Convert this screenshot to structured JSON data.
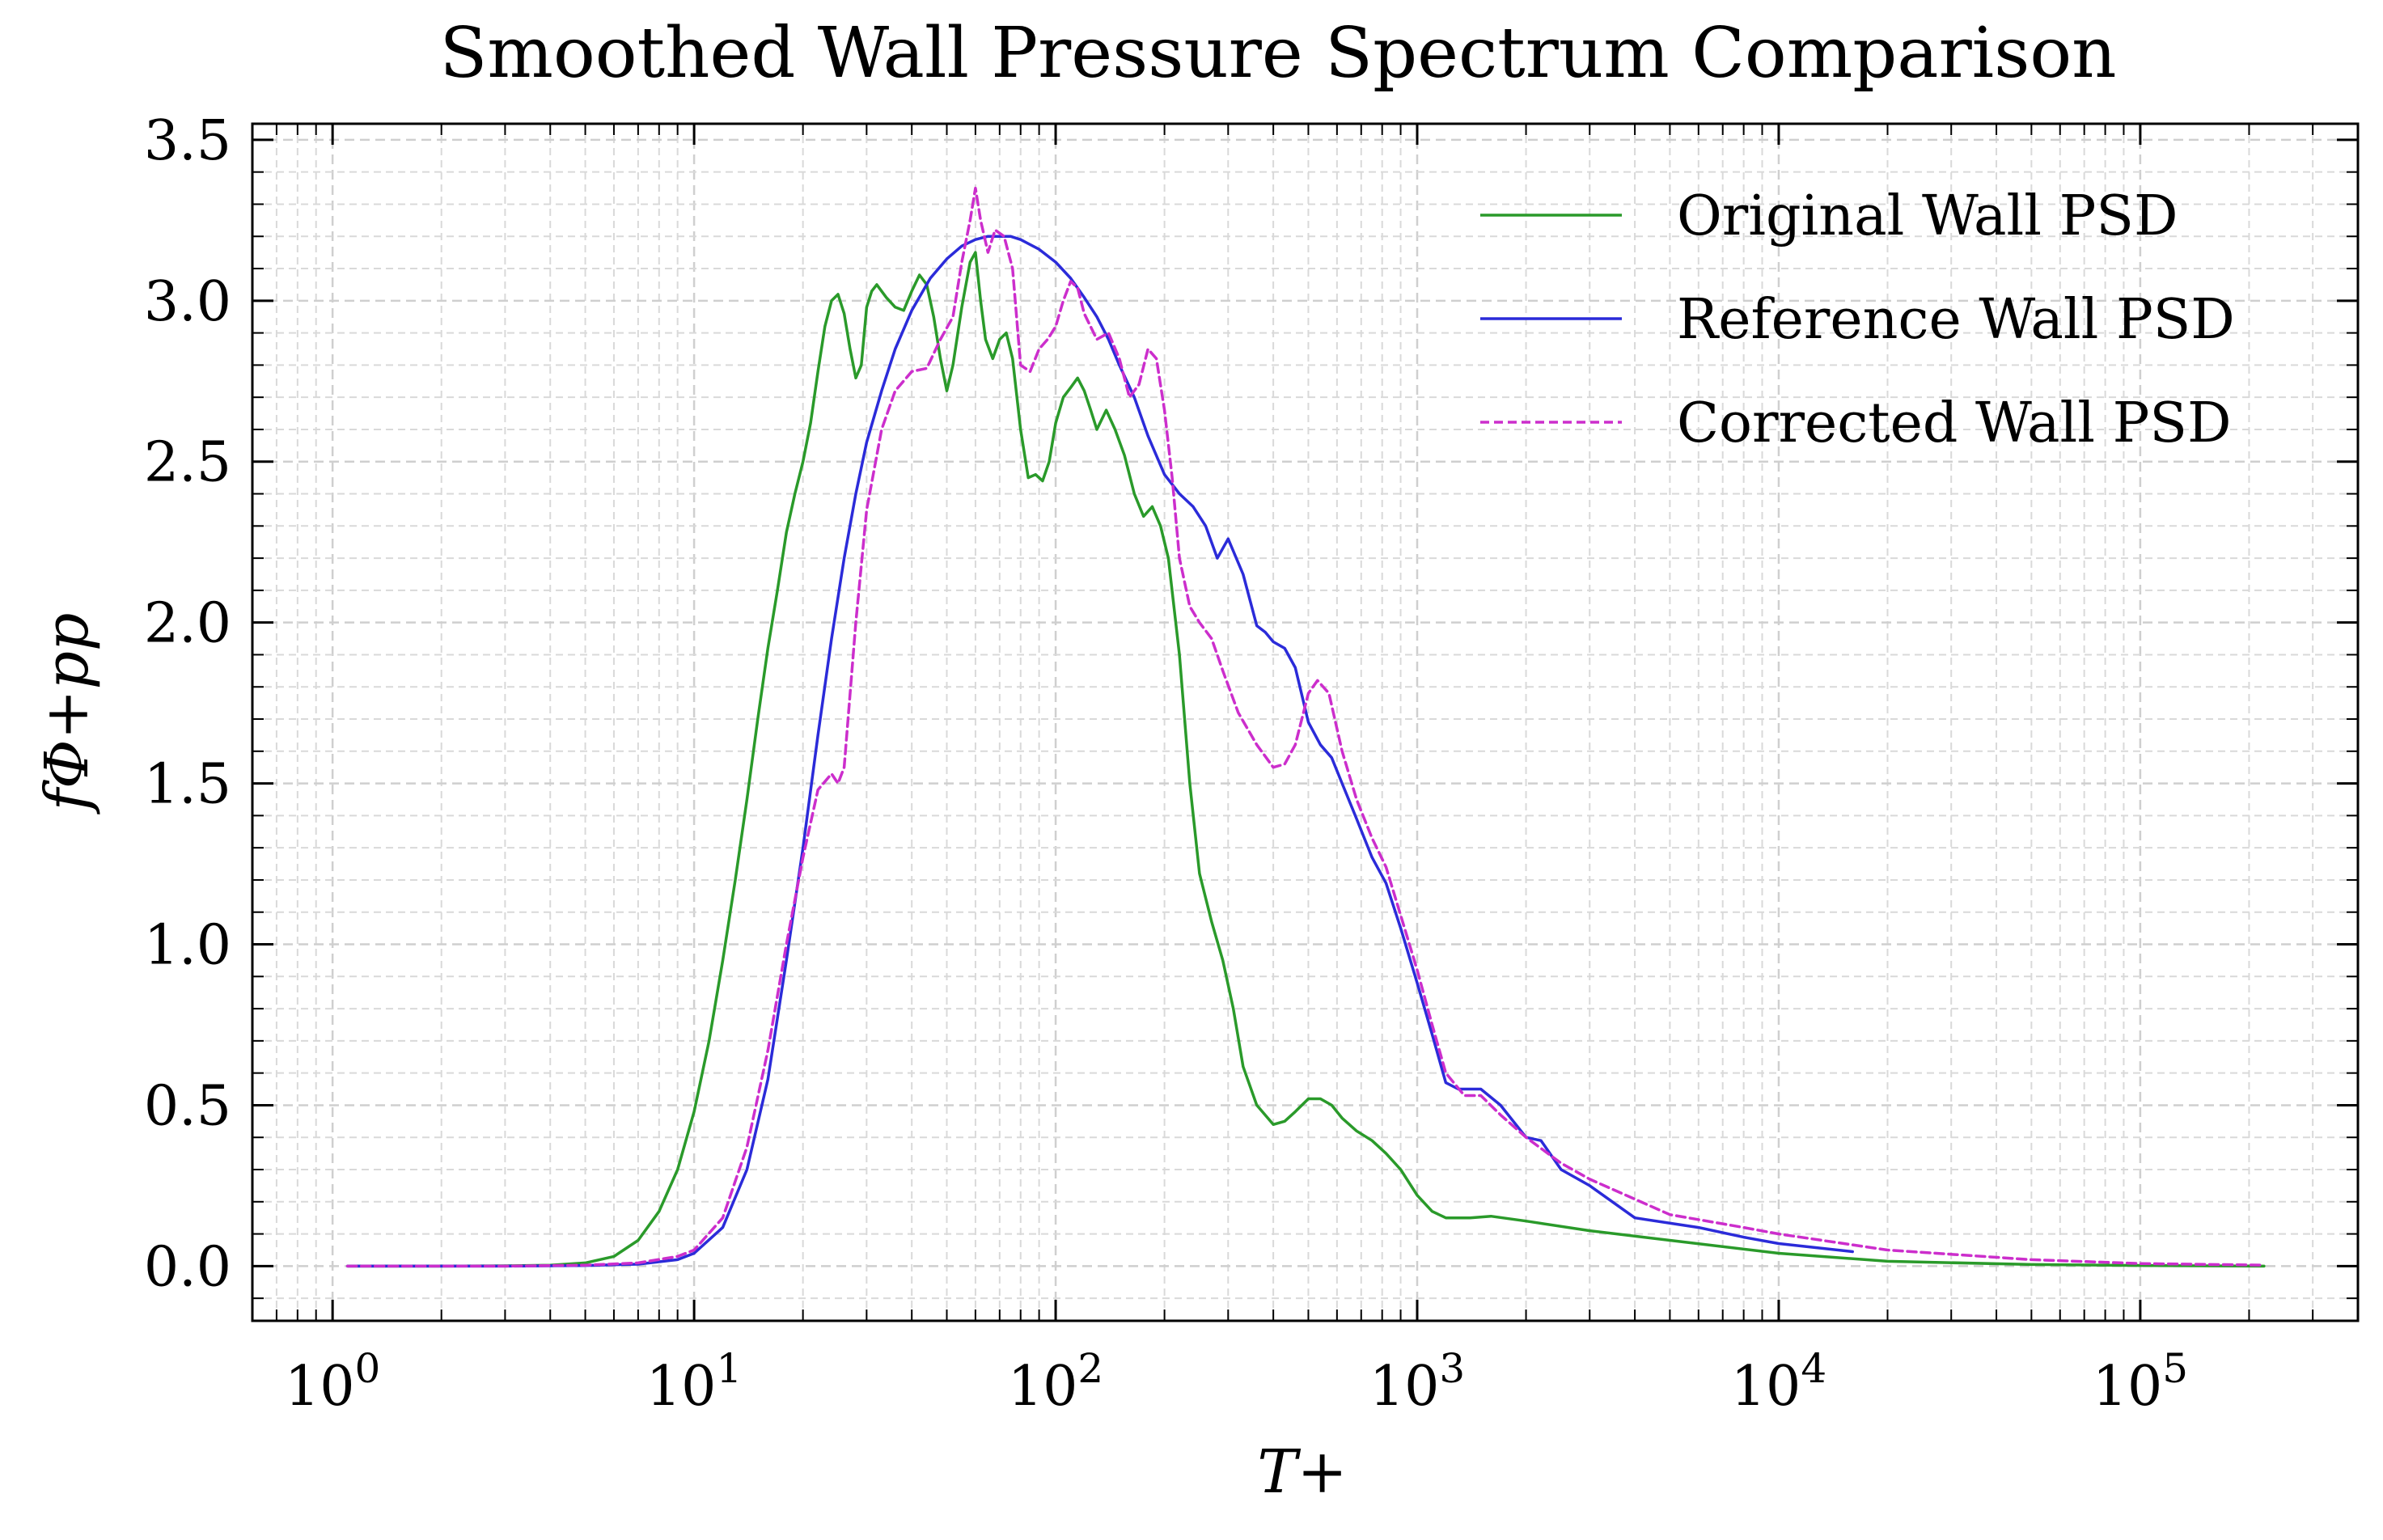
{
  "chart_data": {
    "type": "line",
    "title": "Smoothed Wall Pressure Spectrum Comparison",
    "xlabel": "T+",
    "ylabel": "fΦ+pp",
    "xscale": "log",
    "xlim": [
      0.6,
      400000
    ],
    "ylim": [
      -0.17,
      3.55
    ],
    "x_major_ticks": [
      1,
      10,
      100,
      1000,
      10000,
      100000
    ],
    "x_tick_labels": [
      {
        "base": "10",
        "exp": "0"
      },
      {
        "base": "10",
        "exp": "1"
      },
      {
        "base": "10",
        "exp": "2"
      },
      {
        "base": "10",
        "exp": "3"
      },
      {
        "base": "10",
        "exp": "4"
      },
      {
        "base": "10",
        "exp": "5"
      }
    ],
    "y_major_ticks": [
      0.0,
      0.5,
      1.0,
      1.5,
      2.0,
      2.5,
      3.0,
      3.5
    ],
    "y_tick_labels": [
      "0.0",
      "0.5",
      "1.0",
      "1.5",
      "2.0",
      "2.5",
      "3.0",
      "3.5"
    ],
    "grid": true,
    "legend_position": "top-right",
    "series": [
      {
        "name": "Original Wall PSD",
        "color": "#2a9a2a",
        "dash": "solid",
        "points": [
          [
            1.1,
            0.0
          ],
          [
            2,
            0.0
          ],
          [
            3,
            0.001
          ],
          [
            4,
            0.003
          ],
          [
            5,
            0.01
          ],
          [
            6,
            0.03
          ],
          [
            7,
            0.08
          ],
          [
            8,
            0.17
          ],
          [
            9,
            0.3
          ],
          [
            10,
            0.48
          ],
          [
            11,
            0.7
          ],
          [
            12,
            0.95
          ],
          [
            13,
            1.2
          ],
          [
            14,
            1.45
          ],
          [
            15,
            1.7
          ],
          [
            16,
            1.92
          ],
          [
            17,
            2.1
          ],
          [
            18,
            2.28
          ],
          [
            19,
            2.4
          ],
          [
            20,
            2.5
          ],
          [
            21,
            2.62
          ],
          [
            22,
            2.78
          ],
          [
            23,
            2.92
          ],
          [
            24,
            3.0
          ],
          [
            25,
            3.02
          ],
          [
            26,
            2.96
          ],
          [
            27,
            2.85
          ],
          [
            28,
            2.76
          ],
          [
            29,
            2.8
          ],
          [
            30,
            2.98
          ],
          [
            31,
            3.03
          ],
          [
            32,
            3.05
          ],
          [
            34,
            3.01
          ],
          [
            36,
            2.98
          ],
          [
            38,
            2.97
          ],
          [
            40,
            3.03
          ],
          [
            42,
            3.08
          ],
          [
            44,
            3.05
          ],
          [
            46,
            2.95
          ],
          [
            48,
            2.82
          ],
          [
            50,
            2.72
          ],
          [
            52,
            2.8
          ],
          [
            55,
            2.98
          ],
          [
            58,
            3.12
          ],
          [
            60,
            3.15
          ],
          [
            62,
            3.0
          ],
          [
            64,
            2.88
          ],
          [
            67,
            2.82
          ],
          [
            70,
            2.88
          ],
          [
            73,
            2.9
          ],
          [
            76,
            2.82
          ],
          [
            80,
            2.6
          ],
          [
            84,
            2.45
          ],
          [
            88,
            2.46
          ],
          [
            92,
            2.44
          ],
          [
            96,
            2.5
          ],
          [
            100,
            2.62
          ],
          [
            105,
            2.7
          ],
          [
            110,
            2.73
          ],
          [
            115,
            2.76
          ],
          [
            120,
            2.72
          ],
          [
            125,
            2.66
          ],
          [
            130,
            2.6
          ],
          [
            138,
            2.66
          ],
          [
            146,
            2.6
          ],
          [
            155,
            2.52
          ],
          [
            165,
            2.4
          ],
          [
            175,
            2.33
          ],
          [
            185,
            2.36
          ],
          [
            195,
            2.3
          ],
          [
            205,
            2.2
          ],
          [
            220,
            1.9
          ],
          [
            235,
            1.5
          ],
          [
            250,
            1.22
          ],
          [
            270,
            1.07
          ],
          [
            290,
            0.95
          ],
          [
            310,
            0.8
          ],
          [
            330,
            0.62
          ],
          [
            360,
            0.5
          ],
          [
            400,
            0.44
          ],
          [
            430,
            0.45
          ],
          [
            460,
            0.48
          ],
          [
            500,
            0.52
          ],
          [
            540,
            0.52
          ],
          [
            580,
            0.5
          ],
          [
            620,
            0.46
          ],
          [
            680,
            0.42
          ],
          [
            750,
            0.39
          ],
          [
            820,
            0.35
          ],
          [
            900,
            0.3
          ],
          [
            1000,
            0.22
          ],
          [
            1100,
            0.17
          ],
          [
            1200,
            0.15
          ],
          [
            1400,
            0.15
          ],
          [
            1600,
            0.155
          ],
          [
            2000,
            0.14
          ],
          [
            3000,
            0.11
          ],
          [
            5000,
            0.08
          ],
          [
            10000,
            0.04
          ],
          [
            20000,
            0.015
          ],
          [
            50000,
            0.005
          ],
          [
            100000,
            0.002
          ],
          [
            220000,
            0.0
          ]
        ]
      },
      {
        "name": "Reference Wall PSD",
        "color": "#2b2bd9",
        "dash": "solid",
        "points": [
          [
            1.1,
            0.0
          ],
          [
            3,
            0.0
          ],
          [
            5,
            0.002
          ],
          [
            7,
            0.006
          ],
          [
            9,
            0.02
          ],
          [
            10,
            0.04
          ],
          [
            12,
            0.12
          ],
          [
            14,
            0.3
          ],
          [
            16,
            0.58
          ],
          [
            18,
            0.95
          ],
          [
            20,
            1.3
          ],
          [
            22,
            1.65
          ],
          [
            24,
            1.95
          ],
          [
            26,
            2.2
          ],
          [
            28,
            2.4
          ],
          [
            30,
            2.56
          ],
          [
            33,
            2.72
          ],
          [
            36,
            2.85
          ],
          [
            40,
            2.97
          ],
          [
            45,
            3.07
          ],
          [
            50,
            3.13
          ],
          [
            55,
            3.17
          ],
          [
            60,
            3.19
          ],
          [
            65,
            3.2
          ],
          [
            70,
            3.2
          ],
          [
            75,
            3.2
          ],
          [
            80,
            3.19
          ],
          [
            90,
            3.16
          ],
          [
            100,
            3.12
          ],
          [
            110,
            3.07
          ],
          [
            120,
            3.01
          ],
          [
            130,
            2.95
          ],
          [
            140,
            2.88
          ],
          [
            150,
            2.8
          ],
          [
            165,
            2.7
          ],
          [
            180,
            2.58
          ],
          [
            200,
            2.46
          ],
          [
            220,
            2.4
          ],
          [
            240,
            2.36
          ],
          [
            260,
            2.3
          ],
          [
            280,
            2.2
          ],
          [
            300,
            2.26
          ],
          [
            330,
            2.15
          ],
          [
            360,
            1.99
          ],
          [
            380,
            1.97
          ],
          [
            400,
            1.94
          ],
          [
            430,
            1.92
          ],
          [
            460,
            1.86
          ],
          [
            500,
            1.69
          ],
          [
            540,
            1.62
          ],
          [
            580,
            1.58
          ],
          [
            620,
            1.5
          ],
          [
            680,
            1.39
          ],
          [
            750,
            1.27
          ],
          [
            820,
            1.19
          ],
          [
            900,
            1.05
          ],
          [
            1000,
            0.88
          ],
          [
            1100,
            0.72
          ],
          [
            1200,
            0.57
          ],
          [
            1300,
            0.55
          ],
          [
            1500,
            0.55
          ],
          [
            1700,
            0.5
          ],
          [
            2000,
            0.4
          ],
          [
            2200,
            0.39
          ],
          [
            2500,
            0.3
          ],
          [
            3000,
            0.25
          ],
          [
            4000,
            0.15
          ],
          [
            6000,
            0.12
          ],
          [
            8000,
            0.09
          ],
          [
            10000,
            0.07
          ],
          [
            16000,
            0.045
          ]
        ]
      },
      {
        "name": "Corrected Wall PSD",
        "color": "#cc2ecc",
        "dash": "dashed",
        "points": [
          [
            1.1,
            0.0
          ],
          [
            3,
            0.0
          ],
          [
            5,
            0.003
          ],
          [
            7,
            0.01
          ],
          [
            9,
            0.03
          ],
          [
            10,
            0.05
          ],
          [
            12,
            0.15
          ],
          [
            14,
            0.37
          ],
          [
            16,
            0.67
          ],
          [
            18,
            1.0
          ],
          [
            20,
            1.27
          ],
          [
            22,
            1.48
          ],
          [
            24,
            1.53
          ],
          [
            25,
            1.5
          ],
          [
            26,
            1.55
          ],
          [
            28,
            2.0
          ],
          [
            30,
            2.35
          ],
          [
            33,
            2.6
          ],
          [
            36,
            2.72
          ],
          [
            40,
            2.78
          ],
          [
            44,
            2.79
          ],
          [
            48,
            2.88
          ],
          [
            52,
            2.95
          ],
          [
            55,
            3.12
          ],
          [
            58,
            3.25
          ],
          [
            60,
            3.35
          ],
          [
            62,
            3.25
          ],
          [
            65,
            3.15
          ],
          [
            68,
            3.22
          ],
          [
            72,
            3.2
          ],
          [
            76,
            3.1
          ],
          [
            80,
            2.8
          ],
          [
            85,
            2.78
          ],
          [
            90,
            2.85
          ],
          [
            95,
            2.88
          ],
          [
            100,
            2.92
          ],
          [
            105,
            3.0
          ],
          [
            110,
            3.06
          ],
          [
            115,
            3.04
          ],
          [
            120,
            2.96
          ],
          [
            130,
            2.88
          ],
          [
            140,
            2.9
          ],
          [
            150,
            2.82
          ],
          [
            160,
            2.7
          ],
          [
            170,
            2.74
          ],
          [
            180,
            2.85
          ],
          [
            190,
            2.82
          ],
          [
            200,
            2.66
          ],
          [
            210,
            2.45
          ],
          [
            220,
            2.2
          ],
          [
            235,
            2.05
          ],
          [
            250,
            2.0
          ],
          [
            270,
            1.95
          ],
          [
            290,
            1.85
          ],
          [
            320,
            1.72
          ],
          [
            360,
            1.62
          ],
          [
            400,
            1.55
          ],
          [
            430,
            1.56
          ],
          [
            460,
            1.62
          ],
          [
            500,
            1.78
          ],
          [
            530,
            1.82
          ],
          [
            570,
            1.78
          ],
          [
            620,
            1.6
          ],
          [
            680,
            1.45
          ],
          [
            750,
            1.33
          ],
          [
            820,
            1.24
          ],
          [
            900,
            1.09
          ],
          [
            1000,
            0.92
          ],
          [
            1100,
            0.75
          ],
          [
            1200,
            0.6
          ],
          [
            1350,
            0.53
          ],
          [
            1500,
            0.53
          ],
          [
            1700,
            0.47
          ],
          [
            2000,
            0.4
          ],
          [
            2500,
            0.32
          ],
          [
            3000,
            0.27
          ],
          [
            5000,
            0.16
          ],
          [
            8000,
            0.12
          ],
          [
            10000,
            0.1
          ],
          [
            20000,
            0.05
          ],
          [
            50000,
            0.02
          ],
          [
            100000,
            0.008
          ],
          [
            220000,
            0.003
          ]
        ]
      }
    ]
  }
}
